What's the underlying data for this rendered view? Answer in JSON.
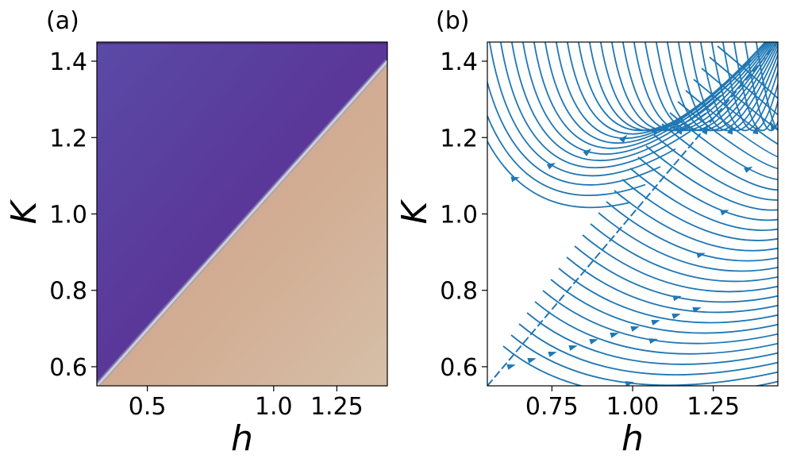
{
  "chart_data": [
    {
      "type": "heatmap",
      "panel_label": "(a)",
      "xlabel": "h",
      "ylabel": "K",
      "xlim": [
        0.3,
        1.45
      ],
      "ylim": [
        0.55,
        1.45
      ],
      "xticks": [
        0.5,
        1.0,
        1.25
      ],
      "xtick_labels": [
        "0.5",
        "1.0",
        "1.25"
      ],
      "yticks": [
        0.6,
        0.8,
        1.0,
        1.2,
        1.4
      ],
      "ytick_labels": [
        "0.6",
        "0.8",
        "1.0",
        "1.2",
        "1.4"
      ],
      "boundary_line": [
        [
          0.3,
          0.55
        ],
        [
          1.45,
          1.4
        ]
      ],
      "regions": [
        {
          "name": "upper-left",
          "color": "#5a3799"
        },
        {
          "name": "lower-right",
          "color": "#d2ae94"
        }
      ],
      "grid": false
    },
    {
      "type": "streamplot",
      "panel_label": "(b)",
      "xlabel": "h",
      "ylabel": "K",
      "xlim": [
        0.55,
        1.45
      ],
      "ylim": [
        0.55,
        1.45
      ],
      "xticks": [
        0.75,
        1.0,
        1.25
      ],
      "xtick_labels": [
        "0.75",
        "1.00",
        "1.25"
      ],
      "yticks": [
        0.6,
        0.8,
        1.0,
        1.2,
        1.4
      ],
      "ytick_labels": [
        "0.6",
        "0.8",
        "1.0",
        "1.2",
        "1.4"
      ],
      "separatrix": [
        [
          0.55,
          0.55
        ],
        [
          1.45,
          1.45
        ]
      ],
      "line_color": "#1f77b4",
      "grid": false
    }
  ]
}
